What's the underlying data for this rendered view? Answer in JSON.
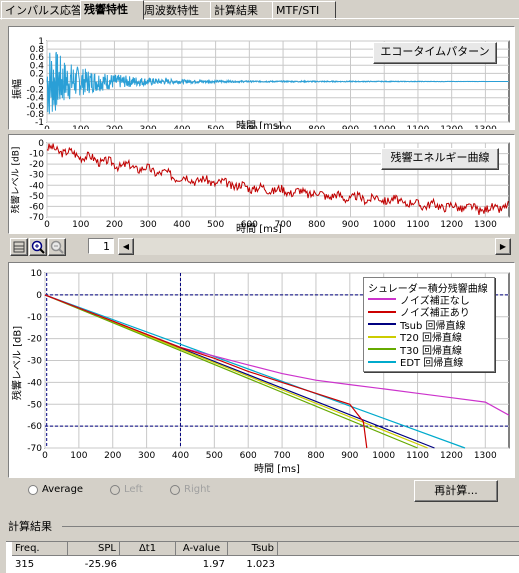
{
  "tabs": [
    "インパルス応答",
    "残響特性",
    "周波数特性",
    "計算結果",
    "MTF/STI"
  ],
  "active_tab": "残響特性",
  "echo_chart": {
    "button_label": "エコータイムパターン",
    "ylabel": "振幅",
    "xlabel": "時間 [ms]",
    "yticks": [
      "1",
      "0.8",
      "0.6",
      "0.4",
      "0.2",
      "0",
      "-0.2",
      "-0.4",
      "-0.6",
      "-0.8",
      "-1"
    ],
    "xticks": [
      "0",
      "100",
      "200",
      "300",
      "400",
      "500",
      "600",
      "700",
      "800",
      "900",
      "1000",
      "1100",
      "1200",
      "1300"
    ]
  },
  "energy_chart": {
    "button_label": "残響エネルギー曲線",
    "ylabel": "残響レベル [dB]",
    "xlabel": "時間 [ms]",
    "yticks": [
      "0",
      "-10",
      "-20",
      "-30",
      "-40",
      "-50",
      "-60",
      "-70"
    ],
    "xticks": [
      "0",
      "100",
      "200",
      "300",
      "400",
      "500",
      "600",
      "700",
      "800",
      "900",
      "1000",
      "1100",
      "1200",
      "1300"
    ]
  },
  "toolbar": {
    "page_value": "1"
  },
  "decay_chart": {
    "ylabel": "残響レベル [dB]",
    "xlabel": "時間 [ms]",
    "yticks": [
      "10",
      "0",
      "-10",
      "-20",
      "-30",
      "-40",
      "-50",
      "-60",
      "-70"
    ],
    "xticks": [
      "0",
      "100",
      "200",
      "300",
      "400",
      "500",
      "600",
      "700",
      "800",
      "900",
      "1000",
      "1100",
      "1200",
      "1300"
    ],
    "legend_title": "シュレーダー積分残響曲線",
    "legend": [
      {
        "name": "ノイズ補正なし",
        "color": "#cc33cc"
      },
      {
        "name": "ノイズ補正あり",
        "color": "#cc0000"
      },
      {
        "name": "Tsub 回帰直線",
        "color": "#000080"
      },
      {
        "name": "T20 回帰直線",
        "color": "#cccc00"
      },
      {
        "name": "T30 回帰直線",
        "color": "#66aa00"
      },
      {
        "name": "EDT 回帰直線",
        "color": "#00aacc"
      }
    ]
  },
  "chart_data": [
    {
      "type": "line",
      "xlabel": "時間 [ms]",
      "ylabel": "振幅",
      "xlim": [
        0,
        1370
      ],
      "ylim": [
        -1,
        1
      ],
      "series": [
        {
          "x": [
            0,
            20,
            50,
            100,
            150,
            200,
            300,
            400,
            500,
            600,
            1370
          ],
          "amplitude_envelope": [
            1.0,
            0.85,
            0.55,
            0.35,
            0.25,
            0.18,
            0.09,
            0.05,
            0.03,
            0.02,
            0.0
          ]
        }
      ]
    },
    {
      "type": "line",
      "xlabel": "時間 [ms]",
      "ylabel": "残響レベル [dB]",
      "xlim": [
        0,
        1370
      ],
      "ylim": [
        -70,
        0
      ],
      "series": [
        {
          "x": [
            0,
            50,
            100,
            200,
            300,
            400,
            500,
            600,
            700,
            800,
            900,
            1000,
            1100,
            1200,
            1300,
            1370
          ],
          "y": [
            -5,
            -8,
            -12,
            -20,
            -25,
            -33,
            -37,
            -42,
            -45,
            -48,
            -52,
            -53,
            -58,
            -60,
            -63,
            -60
          ]
        }
      ]
    },
    {
      "type": "line",
      "xlabel": "時間 [ms]",
      "ylabel": "残響レベル [dB]",
      "xlim": [
        0,
        1370
      ],
      "ylim": [
        -70,
        10
      ],
      "series": [
        {
          "name": "ノイズ補正なし",
          "x": [
            0,
            100,
            200,
            300,
            400,
            500,
            600,
            700,
            800,
            900,
            1000,
            1100,
            1200,
            1300,
            1370
          ],
          "y": [
            0,
            -6,
            -12,
            -18,
            -24,
            -28,
            -32,
            -36,
            -39,
            -41,
            -43,
            -45,
            -47,
            -49,
            -55
          ]
        },
        {
          "name": "ノイズ補正あり",
          "x": [
            0,
            100,
            200,
            300,
            400,
            500,
            600,
            700,
            800,
            900,
            940,
            950
          ],
          "y": [
            0,
            -6,
            -12,
            -18,
            -24,
            -29,
            -35,
            -40,
            -45,
            -50,
            -58,
            -70
          ]
        },
        {
          "name": "Tsub 回帰直線",
          "x": [
            0,
            1150
          ],
          "y": [
            0,
            -70
          ]
        },
        {
          "name": "T20 回帰直線",
          "x": [
            0,
            1130
          ],
          "y": [
            0,
            -70
          ]
        },
        {
          "name": "T30 回帰直線",
          "x": [
            0,
            1100
          ],
          "y": [
            0,
            -70
          ]
        },
        {
          "name": "EDT 回帰直線",
          "x": [
            0,
            1240
          ],
          "y": [
            0,
            -70
          ]
        }
      ],
      "reference_lines": {
        "h": [
          0,
          -60
        ],
        "v": [
          5,
          400
        ]
      }
    }
  ],
  "controls": {
    "average_label": "Average",
    "left_label": "Left",
    "right_label": "Right",
    "recalc_label": "再計算..."
  },
  "results": {
    "title": "計算結果",
    "columns": [
      "Freq.",
      "SPL",
      "Δt1",
      "A-value",
      "Tsub"
    ],
    "row": [
      "315",
      "-25.96",
      "",
      "1.97",
      "1.023"
    ]
  }
}
